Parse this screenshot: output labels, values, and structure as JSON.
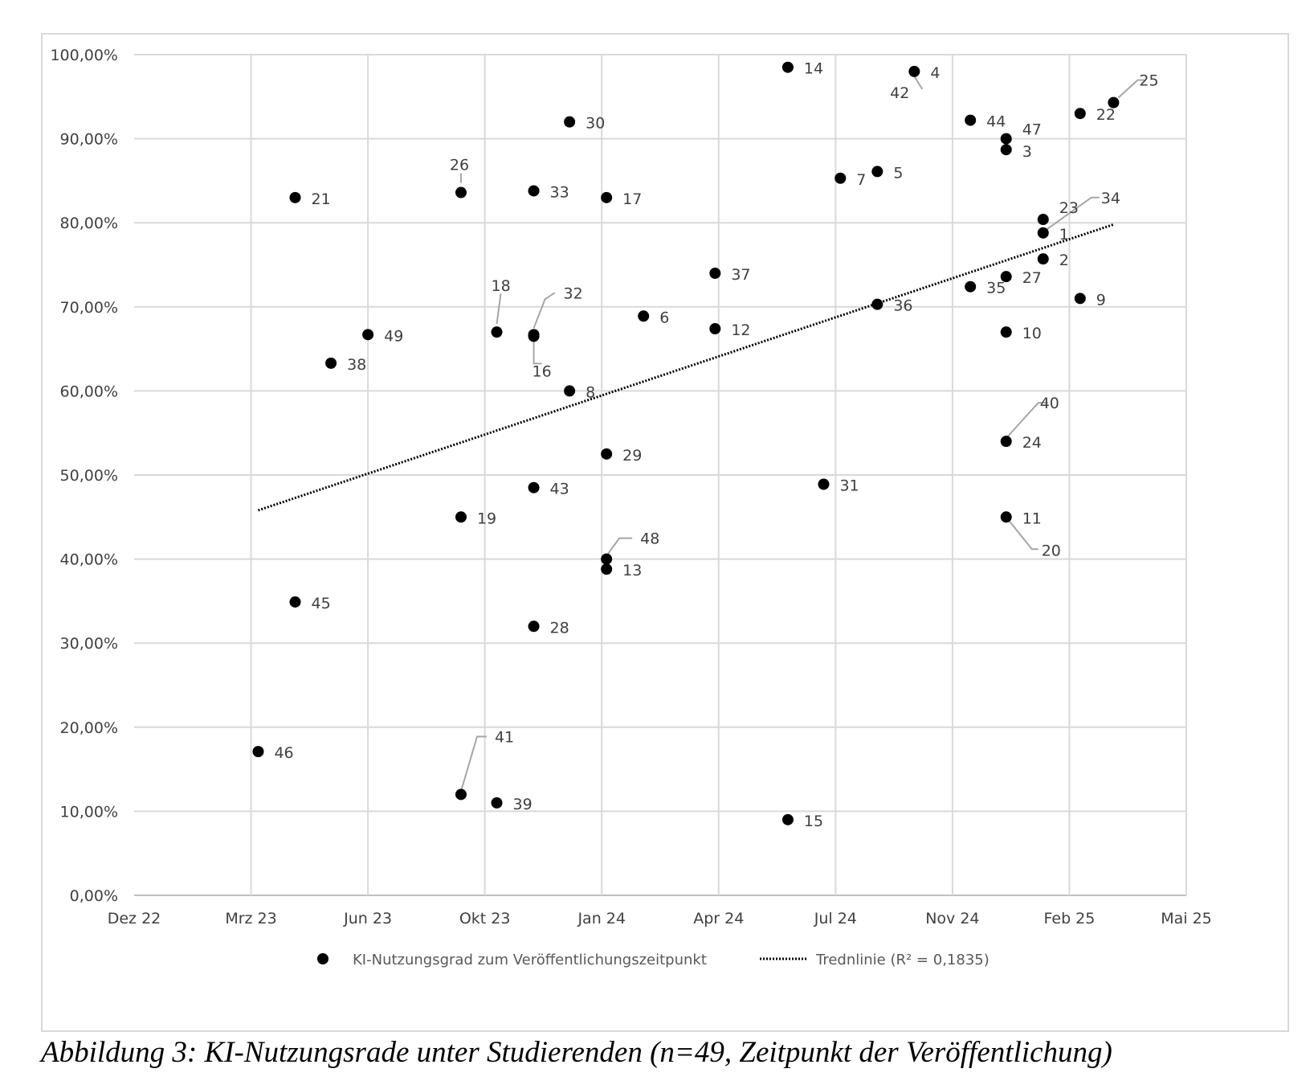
{
  "caption": "Abbildung 3: KI-Nutzungsrade unter Studierenden (n=49, Zeitpunkt der Veröffentlichung)",
  "chart_data": {
    "type": "scatter",
    "title": "",
    "xlabel": "",
    "ylabel": "",
    "x_ticks": [
      "Dez 22",
      "Mrz 23",
      "Jun 23",
      "Okt 23",
      "Jan 24",
      "Apr 24",
      "Jul 24",
      "Nov 24",
      "Feb 25",
      "Mai 25"
    ],
    "y_ticks": [
      "0,00%",
      "10,00%",
      "20,00%",
      "30,00%",
      "40,00%",
      "50,00%",
      "60,00%",
      "70,00%",
      "80,00%",
      "90,00%",
      "100,00%"
    ],
    "xlim": [
      "2022-12-01",
      "2025-05-01"
    ],
    "ylim": [
      0,
      100
    ],
    "grid": true,
    "legend_position": "bottom",
    "point_color": "#000000",
    "trend_color": "#000000",
    "series": [
      {
        "name": "KI-Nutzungsgrad zum Veröffentlichungszeitpunkt",
        "points": [
          {
            "label": "1",
            "x": "2025-01-01",
            "y": 78.8
          },
          {
            "label": "2",
            "x": "2025-01-01",
            "y": 75.7
          },
          {
            "label": "3",
            "x": "2024-12-01",
            "y": 88.7
          },
          {
            "label": "4",
            "x": "2024-09-15",
            "y": 98.0
          },
          {
            "label": "5",
            "x": "2024-08-15",
            "y": 86.1
          },
          {
            "label": "6",
            "x": "2024-02-01",
            "y": 68.9
          },
          {
            "label": "7",
            "x": "2024-07-15",
            "y": 85.3
          },
          {
            "label": "8",
            "x": "2023-12-01",
            "y": 60.0
          },
          {
            "label": "9",
            "x": "2025-02-01",
            "y": 71.0
          },
          {
            "label": "10",
            "x": "2024-12-01",
            "y": 67.0
          },
          {
            "label": "11",
            "x": "2024-12-01",
            "y": 45.0
          },
          {
            "label": "12",
            "x": "2024-04-01",
            "y": 67.4
          },
          {
            "label": "13",
            "x": "2024-01-01",
            "y": 38.8
          },
          {
            "label": "14",
            "x": "2024-06-01",
            "y": 98.5
          },
          {
            "label": "15",
            "x": "2024-06-01",
            "y": 9.0
          },
          {
            "label": "16",
            "x": "2023-11-01",
            "y": 66.5
          },
          {
            "label": "17",
            "x": "2024-01-01",
            "y": 83.0
          },
          {
            "label": "18",
            "x": "2023-10-01",
            "y": 67.0
          },
          {
            "label": "19",
            "x": "2023-09-01",
            "y": 45.0
          },
          {
            "label": "20",
            "x": "2024-12-01",
            "y": 45.0
          },
          {
            "label": "21",
            "x": "2023-04-15",
            "y": 83.0
          },
          {
            "label": "22",
            "x": "2025-02-01",
            "y": 93.0
          },
          {
            "label": "23",
            "x": "2025-01-01",
            "y": 80.4
          },
          {
            "label": "24",
            "x": "2024-12-01",
            "y": 54.0
          },
          {
            "label": "25",
            "x": "2025-03-01",
            "y": 94.3
          },
          {
            "label": "26",
            "x": "2023-09-01",
            "y": 83.6
          },
          {
            "label": "27",
            "x": "2024-12-01",
            "y": 73.6
          },
          {
            "label": "28",
            "x": "2023-11-01",
            "y": 32.0
          },
          {
            "label": "29",
            "x": "2024-01-01",
            "y": 52.5
          },
          {
            "label": "30",
            "x": "2023-12-01",
            "y": 92.0
          },
          {
            "label": "31",
            "x": "2024-07-01",
            "y": 48.9
          },
          {
            "label": "32",
            "x": "2023-11-01",
            "y": 66.7
          },
          {
            "label": "33",
            "x": "2023-11-01",
            "y": 83.8
          },
          {
            "label": "34",
            "x": "2025-01-01",
            "y": 78.8
          },
          {
            "label": "35",
            "x": "2024-11-01",
            "y": 72.4
          },
          {
            "label": "36",
            "x": "2024-08-15",
            "y": 70.3
          },
          {
            "label": "37",
            "x": "2024-04-01",
            "y": 74.0
          },
          {
            "label": "38",
            "x": "2023-05-15",
            "y": 63.3
          },
          {
            "label": "39",
            "x": "2023-10-01",
            "y": 11.0
          },
          {
            "label": "40",
            "x": "2024-12-01",
            "y": 54.0
          },
          {
            "label": "41",
            "x": "2023-09-01",
            "y": 12.0
          },
          {
            "label": "42",
            "x": "2024-09-15",
            "y": 98.0
          },
          {
            "label": "43",
            "x": "2023-11-01",
            "y": 48.5
          },
          {
            "label": "44",
            "x": "2024-11-01",
            "y": 92.2
          },
          {
            "label": "45",
            "x": "2023-04-15",
            "y": 34.9
          },
          {
            "label": "46",
            "x": "2023-03-15",
            "y": 17.1
          },
          {
            "label": "47",
            "x": "2024-12-01",
            "y": 90.0
          },
          {
            "label": "48",
            "x": "2024-01-01",
            "y": 40.0
          },
          {
            "label": "49",
            "x": "2023-06-15",
            "y": 66.7
          }
        ]
      },
      {
        "name": "Trednlinie (R² = 0,1835)",
        "type": "trendline",
        "x": [
          "2023-03-15",
          "2025-03-01"
        ],
        "y": [
          45.8,
          79.8
        ]
      }
    ]
  }
}
